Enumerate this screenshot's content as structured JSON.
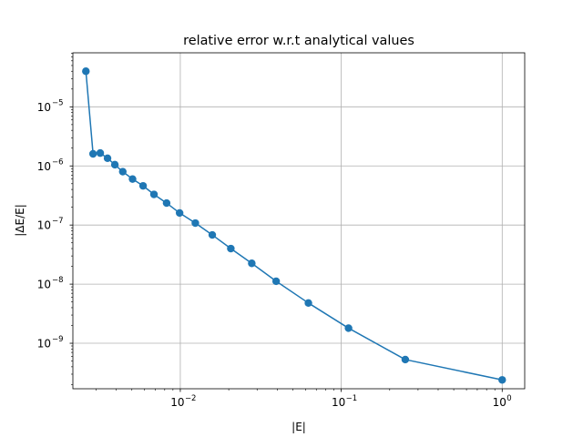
{
  "chart_data": {
    "type": "line",
    "title": "relative error w.r.t analytical values",
    "xlabel": "|E|",
    "ylabel": "|ΔE/E|",
    "xscale": "log",
    "yscale": "log",
    "xlim": [
      0.00215,
      1.38
    ],
    "ylim": [
      1.7e-10,
      8.2e-05
    ],
    "grid": true,
    "marker": "circle",
    "color": "#1f77b4",
    "x_ticks": [
      {
        "base": "10",
        "exp": "−2",
        "value": 0.01
      },
      {
        "base": "10",
        "exp": "−1",
        "value": 0.1
      },
      {
        "base": "10",
        "exp": "0",
        "value": 1
      }
    ],
    "y_ticks": [
      {
        "base": "10",
        "exp": "−9",
        "value": 1e-09
      },
      {
        "base": "10",
        "exp": "−8",
        "value": 1e-08
      },
      {
        "base": "10",
        "exp": "−7",
        "value": 1e-07
      },
      {
        "base": "10",
        "exp": "−6",
        "value": 1e-06
      },
      {
        "base": "10",
        "exp": "−5",
        "value": 1e-05
      }
    ],
    "series": [
      {
        "points": [
          [
            0.00259,
            4e-05
          ],
          [
            0.00287,
            1.6e-06
          ],
          [
            0.00318,
            1.65e-06
          ],
          [
            0.00353,
            1.35e-06
          ],
          [
            0.00392,
            1.05e-06
          ],
          [
            0.00439,
            8e-07
          ],
          [
            0.00505,
            6e-07
          ],
          [
            0.00587,
            4.6e-07
          ],
          [
            0.00686,
            3.3e-07
          ],
          [
            0.00822,
            2.35e-07
          ],
          [
            0.0099,
            1.6e-07
          ],
          [
            0.0124,
            1.08e-07
          ],
          [
            0.0158,
            6.8e-08
          ],
          [
            0.0206,
            4e-08
          ],
          [
            0.0278,
            2.25e-08
          ],
          [
            0.0394,
            1.12e-08
          ],
          [
            0.0625,
            4.8e-09
          ],
          [
            0.111,
            1.8e-09
          ],
          [
            0.25,
            5.3e-10
          ],
          [
            1.0,
            2.4e-10
          ]
        ]
      }
    ]
  }
}
